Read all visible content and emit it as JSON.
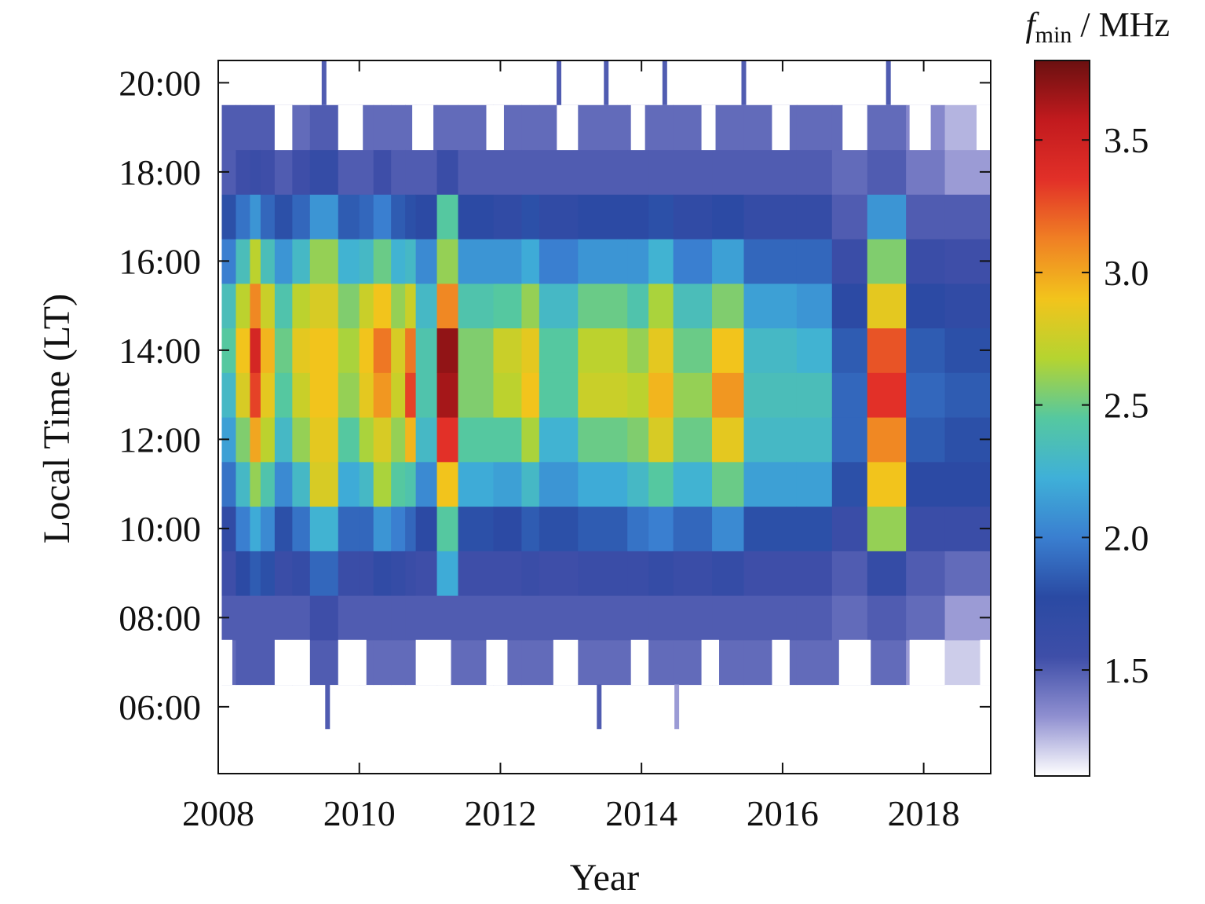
{
  "chart_data": {
    "type": "heatmap",
    "title": "",
    "xlabel": "Year",
    "ylabel": "Local Time (LT)",
    "x_ticks": [
      "2008",
      "2010",
      "2012",
      "2014",
      "2016",
      "2018"
    ],
    "x_tick_values": [
      2008,
      2010,
      2012,
      2014,
      2016,
      2018
    ],
    "y_ticks": [
      "06:00",
      "08:00",
      "10:00",
      "12:00",
      "14:00",
      "16:00",
      "18:00",
      "20:00"
    ],
    "y_tick_values": [
      6,
      8,
      10,
      12,
      14,
      16,
      18,
      20
    ],
    "xlim": [
      2008,
      2018.95
    ],
    "ylim": [
      4.5,
      20.5
    ],
    "colorbar": {
      "label_main": "f",
      "label_sub": "min",
      "label_unit": " / MHz",
      "ticks": [
        "1.5",
        "2.0",
        "2.5",
        "3.0",
        "3.5"
      ],
      "tick_values": [
        1.5,
        2.0,
        2.5,
        3.0,
        3.5
      ],
      "range": [
        1.1,
        3.8
      ],
      "colormap": [
        "#ffffff",
        "#8f8fd0",
        "#3e4ea8",
        "#2a4aa3",
        "#3a7fd0",
        "#3fb0d8",
        "#55c8a0",
        "#b5d430",
        "#f2c41c",
        "#f08024",
        "#e23028",
        "#c21a1e",
        "#6a1010"
      ]
    },
    "lt_bins": [
      7,
      8,
      9,
      10,
      11,
      12,
      13,
      14,
      15,
      16,
      17,
      18,
      19
    ],
    "columns": [
      {
        "x0": 2008.05,
        "x1": 2008.25,
        "v": [
          1.45,
          1.5,
          1.55,
          1.7,
          1.95,
          2.15,
          2.3,
          2.45,
          2.35,
          2.0,
          1.8,
          1.5,
          1.5
        ]
      },
      {
        "x0": 2008.25,
        "x1": 2008.45,
        "v": [
          1.5,
          1.5,
          1.75,
          2.0,
          2.3,
          2.55,
          2.8,
          2.9,
          2.7,
          2.35,
          1.95,
          1.55,
          1.5
        ]
      },
      {
        "x0": 2008.45,
        "x1": 2008.6,
        "v": [
          1.5,
          1.5,
          1.85,
          2.2,
          2.6,
          3.0,
          3.3,
          3.45,
          3.1,
          2.7,
          2.1,
          1.6,
          1.5
        ]
      },
      {
        "x0": 2008.6,
        "x1": 2008.8,
        "v": [
          1.5,
          1.5,
          1.8,
          2.05,
          2.4,
          2.7,
          2.85,
          2.95,
          2.75,
          2.35,
          1.9,
          1.55,
          1.5
        ]
      },
      {
        "x0": 2008.8,
        "x1": 2009.05,
        "v": [
          1.45,
          1.5,
          1.6,
          1.8,
          2.05,
          2.3,
          2.45,
          2.5,
          2.4,
          2.1,
          1.8,
          1.5,
          1.45
        ]
      },
      {
        "x0": 2009.05,
        "x1": 2009.3,
        "v": [
          1.45,
          1.5,
          1.65,
          1.95,
          2.3,
          2.6,
          2.75,
          2.85,
          2.7,
          2.3,
          1.9,
          1.55,
          1.45
        ]
      },
      {
        "x0": 2009.3,
        "x1": 2009.7,
        "v": [
          1.5,
          1.55,
          1.9,
          2.25,
          2.8,
          2.85,
          2.9,
          2.9,
          2.8,
          2.6,
          2.1,
          1.65,
          1.5
        ]
      },
      {
        "x0": 2009.7,
        "x1": 2010.0,
        "v": [
          1.45,
          1.5,
          1.6,
          1.9,
          2.2,
          2.45,
          2.6,
          2.65,
          2.55,
          2.25,
          1.85,
          1.5,
          1.45
        ]
      },
      {
        "x0": 2010.0,
        "x1": 2010.2,
        "v": [
          1.45,
          1.5,
          1.6,
          1.9,
          2.3,
          2.65,
          2.85,
          2.9,
          2.75,
          2.3,
          1.9,
          1.5,
          1.45
        ]
      },
      {
        "x0": 2010.2,
        "x1": 2010.45,
        "v": [
          1.45,
          1.5,
          1.7,
          2.1,
          2.65,
          2.8,
          3.05,
          3.15,
          2.9,
          2.5,
          2.0,
          1.55,
          1.45
        ]
      },
      {
        "x0": 2010.45,
        "x1": 2010.65,
        "v": [
          1.45,
          1.5,
          1.65,
          2.0,
          2.45,
          2.6,
          2.75,
          2.8,
          2.6,
          2.25,
          1.85,
          1.5,
          1.45
        ]
      },
      {
        "x0": 2010.65,
        "x1": 2010.8,
        "v": [
          1.45,
          1.5,
          1.6,
          1.9,
          2.4,
          2.95,
          3.3,
          3.15,
          2.75,
          2.3,
          1.8,
          1.5,
          1.45
        ]
      },
      {
        "x0": 2010.8,
        "x1": 2011.1,
        "v": [
          1.45,
          1.5,
          1.55,
          1.75,
          2.05,
          2.3,
          2.4,
          2.4,
          2.3,
          2.05,
          1.75,
          1.5,
          1.45
        ]
      },
      {
        "x0": 2011.1,
        "x1": 2011.4,
        "v": [
          1.45,
          1.5,
          2.2,
          2.45,
          2.9,
          3.35,
          3.65,
          3.7,
          3.1,
          2.6,
          2.45,
          1.6,
          1.45
        ]
      },
      {
        "x0": 2011.4,
        "x1": 2011.9,
        "v": [
          1.45,
          1.5,
          1.55,
          1.8,
          2.2,
          2.45,
          2.55,
          2.55,
          2.4,
          2.1,
          1.75,
          1.5,
          1.45
        ]
      },
      {
        "x0": 2011.9,
        "x1": 2012.3,
        "v": [
          1.45,
          1.5,
          1.55,
          1.75,
          2.15,
          2.45,
          2.7,
          2.75,
          2.45,
          2.1,
          1.7,
          1.5,
          1.45
        ]
      },
      {
        "x0": 2012.3,
        "x1": 2012.55,
        "v": [
          1.45,
          1.5,
          1.6,
          1.85,
          2.3,
          2.65,
          2.9,
          2.85,
          2.6,
          2.2,
          1.8,
          1.5,
          1.45
        ]
      },
      {
        "x0": 2012.55,
        "x1": 2013.1,
        "v": [
          1.45,
          1.5,
          1.55,
          1.8,
          2.1,
          2.25,
          2.45,
          2.45,
          2.3,
          2.0,
          1.7,
          1.5,
          1.45
        ]
      },
      {
        "x0": 2013.1,
        "x1": 2013.8,
        "v": [
          1.45,
          1.5,
          1.6,
          1.85,
          2.2,
          2.5,
          2.75,
          2.7,
          2.5,
          2.1,
          1.75,
          1.5,
          1.45
        ]
      },
      {
        "x0": 2013.8,
        "x1": 2014.1,
        "v": [
          1.45,
          1.5,
          1.6,
          1.95,
          2.3,
          2.55,
          2.7,
          2.6,
          2.4,
          2.1,
          1.75,
          1.5,
          1.45
        ]
      },
      {
        "x0": 2014.1,
        "x1": 2014.45,
        "v": [
          1.45,
          1.5,
          1.65,
          2.0,
          2.45,
          2.8,
          2.95,
          2.85,
          2.65,
          2.25,
          1.8,
          1.5,
          1.45
        ]
      },
      {
        "x0": 2014.45,
        "x1": 2015.0,
        "v": [
          1.45,
          1.5,
          1.6,
          1.9,
          2.25,
          2.5,
          2.6,
          2.5,
          2.35,
          2.0,
          1.7,
          1.5,
          1.45
        ]
      },
      {
        "x0": 2015.0,
        "x1": 2015.45,
        "v": [
          1.45,
          1.5,
          1.65,
          2.05,
          2.5,
          2.85,
          3.05,
          2.9,
          2.55,
          2.15,
          1.75,
          1.5,
          1.45
        ]
      },
      {
        "x0": 2015.45,
        "x1": 2016.2,
        "v": [
          1.45,
          1.5,
          1.55,
          1.8,
          2.15,
          2.3,
          2.35,
          2.3,
          2.15,
          1.9,
          1.65,
          1.5,
          1.45
        ]
      },
      {
        "x0": 2016.2,
        "x1": 2016.7,
        "v": [
          1.45,
          1.5,
          1.55,
          1.8,
          2.15,
          2.3,
          2.35,
          2.25,
          2.1,
          1.9,
          1.65,
          1.5,
          1.45
        ]
      },
      {
        "x0": 2016.7,
        "x1": 2017.2,
        "v": [
          1.45,
          1.45,
          1.5,
          1.6,
          1.8,
          1.9,
          1.9,
          1.85,
          1.75,
          1.6,
          1.5,
          1.45,
          1.45
        ]
      },
      {
        "x0": 2017.2,
        "x1": 2017.75,
        "v": [
          1.45,
          1.5,
          1.65,
          2.6,
          2.9,
          3.1,
          3.35,
          3.25,
          2.85,
          2.55,
          2.1,
          1.5,
          1.45
        ]
      },
      {
        "x0": 2017.75,
        "x1": 2018.3,
        "v": [
          1.3,
          1.45,
          1.5,
          1.6,
          1.75,
          1.85,
          1.9,
          1.85,
          1.75,
          1.6,
          1.5,
          1.4,
          1.35
        ]
      },
      {
        "x0": 2018.3,
        "x1": 2018.95,
        "v": [
          1.2,
          1.3,
          1.45,
          1.6,
          1.75,
          1.8,
          1.85,
          1.8,
          1.7,
          1.55,
          1.5,
          1.3,
          1.25
        ]
      }
    ],
    "spikes": [
      {
        "x": 2009.5,
        "lt_from": 19.5,
        "lt_to": 20.5,
        "v": 1.5
      },
      {
        "x": 2012.83,
        "lt_from": 19.5,
        "lt_to": 20.5,
        "v": 1.5
      },
      {
        "x": 2013.5,
        "lt_from": 19.5,
        "lt_to": 20.5,
        "v": 1.5
      },
      {
        "x": 2014.33,
        "lt_from": 19.5,
        "lt_to": 20.5,
        "v": 1.5
      },
      {
        "x": 2015.45,
        "lt_from": 19.5,
        "lt_to": 20.5,
        "v": 1.5
      },
      {
        "x": 2017.5,
        "lt_from": 19.5,
        "lt_to": 20.5,
        "v": 1.5
      },
      {
        "x": 2009.55,
        "lt_from": 5.5,
        "lt_to": 6.5,
        "v": 1.5
      },
      {
        "x": 2013.4,
        "lt_from": 5.5,
        "lt_to": 6.5,
        "v": 1.5
      },
      {
        "x": 2014.5,
        "lt_from": 5.5,
        "lt_to": 6.5,
        "v": 1.3
      }
    ],
    "top_gaps": [
      [
        2008.0,
        2008.05
      ],
      [
        2008.8,
        2009.05
      ],
      [
        2009.7,
        2010.05
      ],
      [
        2010.75,
        2011.05
      ],
      [
        2011.8,
        2012.05
      ],
      [
        2012.8,
        2013.1
      ],
      [
        2013.85,
        2014.05
      ],
      [
        2014.85,
        2015.05
      ],
      [
        2015.85,
        2016.1
      ],
      [
        2016.85,
        2017.2
      ],
      [
        2017.8,
        2018.1
      ],
      [
        2018.75,
        2018.95
      ]
    ],
    "bottom_gaps": [
      [
        2008.0,
        2008.2
      ],
      [
        2008.8,
        2009.3
      ],
      [
        2009.7,
        2010.1
      ],
      [
        2010.8,
        2011.3
      ],
      [
        2011.8,
        2012.1
      ],
      [
        2012.75,
        2013.1
      ],
      [
        2013.85,
        2014.1
      ],
      [
        2014.85,
        2015.1
      ],
      [
        2015.85,
        2016.1
      ],
      [
        2016.8,
        2017.25
      ],
      [
        2017.8,
        2018.3
      ],
      [
        2018.8,
        2018.95
      ]
    ]
  }
}
